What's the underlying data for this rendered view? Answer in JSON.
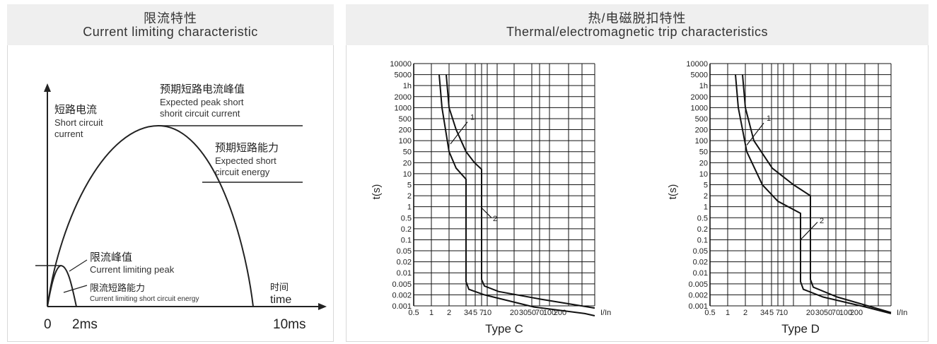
{
  "left": {
    "title_zh": "限流特性",
    "title_en": "Current limiting characteristic",
    "y_axis_zh": "短路电流",
    "y_axis_en_1": "Short circuit",
    "y_axis_en_2": "current",
    "peak_zh": "预期短路电流峰值",
    "peak_en_1": "Expected peak short",
    "peak_en_2": "shorit circuit current",
    "energy_zh": "预期短路能力",
    "energy_en_1": "Expected short",
    "energy_en_2": "circuit energy",
    "limit_peak_zh": "限流峰值",
    "limit_peak_en": "Current limiting peak",
    "limit_energy_zh": "限流短路能力",
    "limit_energy_en": "Current limiting short circuit energy",
    "x_axis_zh": "时间",
    "x_axis_en": "time",
    "tick_0": "0",
    "tick_2ms": "2ms",
    "tick_10ms": "10ms"
  },
  "right": {
    "title_zh": "热/电磁脱扣特性",
    "title_en": "Thermal/electromagnetic trip characteristics",
    "y_label": "t(s)",
    "x_label": "I/In",
    "y_ticks": [
      "10000",
      "5000",
      "1h",
      "2000",
      "1000",
      "500",
      "200",
      "100",
      "50",
      "20",
      "10",
      "5",
      "2",
      "1",
      "0.5",
      "0.2",
      "0.1",
      "0.05",
      "0.02",
      "0.01",
      "0.005",
      "0.002",
      "0.001"
    ],
    "x_ticks": [
      "0.5",
      "1",
      "2",
      "3",
      "4",
      "5",
      "7",
      "10",
      "20",
      "30",
      "50",
      "70",
      "100",
      "200"
    ],
    "curve_label_1": "1",
    "curve_label_2": "2",
    "chart_c_name": "Type C",
    "chart_d_name": "Type D"
  },
  "colors": {
    "header_bg": "#efefef",
    "line": "#222222",
    "grid": "#111111"
  }
}
